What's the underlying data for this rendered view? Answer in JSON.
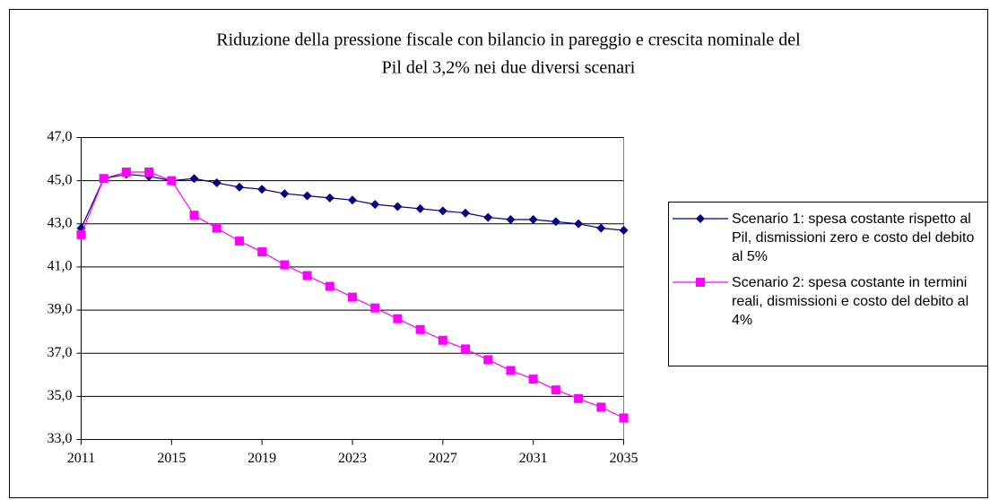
{
  "chart_data": {
    "type": "line",
    "title": [
      "Riduzione della pressione fiscale con bilancio in pareggio e crescita nominale del",
      "Pil del 3,2% nei due diversi scenari"
    ],
    "x": [
      2011,
      2012,
      2013,
      2014,
      2015,
      2016,
      2017,
      2018,
      2019,
      2020,
      2021,
      2022,
      2023,
      2024,
      2025,
      2026,
      2027,
      2028,
      2029,
      2030,
      2031,
      2032,
      2033,
      2034,
      2035
    ],
    "series": [
      {
        "name": "Scenario 1: spesa costante rispetto al Pil, dismissioni zero e costo del debito al 5%",
        "color": "#000080",
        "marker": "diamond",
        "values": [
          42.8,
          45.1,
          45.3,
          45.2,
          45.0,
          45.1,
          44.9,
          44.7,
          44.6,
          44.4,
          44.3,
          44.2,
          44.1,
          43.9,
          43.8,
          43.7,
          43.6,
          43.5,
          43.3,
          43.2,
          43.2,
          43.1,
          43.0,
          42.8,
          42.7
        ]
      },
      {
        "name": "Scenario 2: spesa costante in termini reali, dismissioni e costo del debito al 4%",
        "color": "#ff00ff",
        "marker": "square",
        "values": [
          42.5,
          45.1,
          45.4,
          45.4,
          45.0,
          43.4,
          42.8,
          42.2,
          41.7,
          41.1,
          40.6,
          40.1,
          39.6,
          39.1,
          38.6,
          38.1,
          37.6,
          37.2,
          36.7,
          36.2,
          35.8,
          35.3,
          34.9,
          34.5,
          34.0
        ]
      }
    ],
    "xlim": [
      2011,
      2035
    ],
    "xticks": [
      2011,
      2015,
      2019,
      2023,
      2027,
      2031,
      2035
    ],
    "ylim": [
      33,
      47
    ],
    "yticks": [
      {
        "value": 33,
        "label": "33,0"
      },
      {
        "value": 35,
        "label": "35,0"
      },
      {
        "value": 37,
        "label": "37,0"
      },
      {
        "value": 39,
        "label": "39,0"
      },
      {
        "value": 41,
        "label": "41,0"
      },
      {
        "value": 43,
        "label": "43,0"
      },
      {
        "value": 45,
        "label": "45,0"
      },
      {
        "value": 47,
        "label": "47,0"
      }
    ],
    "grid": true,
    "legend": "right"
  }
}
